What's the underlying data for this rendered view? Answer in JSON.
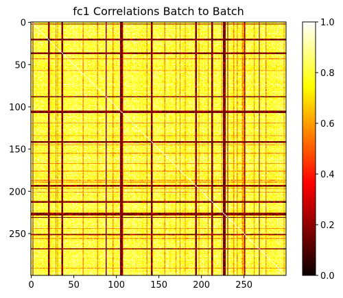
{
  "chart_data": {
    "type": "heatmap",
    "title": "fc1 Correlations Batch to Batch",
    "xlabel": "",
    "ylabel": "",
    "matrix_size": 300,
    "xlim": [
      0,
      300
    ],
    "ylim": [
      300,
      0
    ],
    "x_ticks": [
      0,
      50,
      100,
      150,
      200,
      250
    ],
    "y_ticks": [
      0,
      50,
      100,
      150,
      200,
      250
    ],
    "colormap": "hot",
    "color_range": [
      0.0,
      1.0
    ],
    "colorbar_ticks": [
      0.0,
      0.2,
      0.4,
      0.6,
      0.8,
      1.0
    ],
    "colorbar_tick_labels": [
      "0.0",
      "0.2",
      "0.4",
      "0.6",
      "0.8",
      "1.0"
    ],
    "typical_value_range": [
      0.6,
      1.0
    ],
    "diagonal_value": 1.0,
    "low_correlation_indices": [
      2,
      20,
      21,
      36,
      37,
      88,
      105,
      106,
      107,
      141,
      142,
      193,
      194,
      212,
      213,
      226,
      227,
      228,
      231,
      251,
      268
    ],
    "grid": false,
    "legend": "colorbar-right"
  }
}
